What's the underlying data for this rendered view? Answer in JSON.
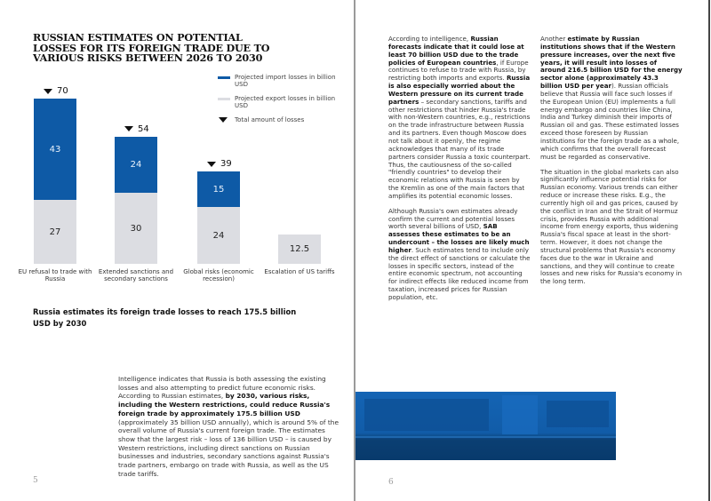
{
  "left_page": {
    "chart_title": "Russian estimates on potential losses for its foreign trade due to various risks between 2026 to 2030",
    "subheading": "Russia estimates its foreign trade losses to reach 175.5 billion USD by 2030",
    "paragraph": [
      {
        "t": "Intelligence indicates that Russia is both assessing the existing losses and also attempting to predict future economic risks. According to Russian estimates, ",
        "b": false
      },
      {
        "t": "by 2030, various risks, including the Western restrictions, could reduce Russia's foreign trade by approximately 175.5 billion USD",
        "b": true
      },
      {
        "t": " (approximately 35 billion USD annually), which is around 5% of the overall volume of Russia's current foreign trade. The estimates show that the largest risk – loss of 136 billion USD – is caused by Western restrictions, including direct sanctions on Russian businesses and industries, secondary sanctions against Russia's trade partners, embargo on trade with Russia, as well as the US trade tariffs.",
        "b": false
      }
    ],
    "page_number": "5"
  },
  "chart_data": {
    "type": "bar",
    "stacked": true,
    "title": "Russian estimates on potential losses for its foreign trade due to various risks between 2026 to 2030",
    "categories": [
      "EU refusal to trade with Russia",
      "Extended sanctions and secondary sanctions",
      "Global risks (economic recession)",
      "Escalation of US tariffs"
    ],
    "series": [
      {
        "name": "Projected export losses in billion USD",
        "values": [
          27,
          30,
          24,
          12.5
        ],
        "color": "#dcdde2"
      },
      {
        "name": "Projected import losses in billion USD",
        "values": [
          43,
          24,
          15,
          null
        ],
        "color": "#0e5aa6"
      }
    ],
    "totals": {
      "name": "Total amount of losses",
      "values": [
        70,
        54,
        39,
        null
      ]
    },
    "legend_order": [
      "Projected import losses in billion USD",
      "Projected export losses in billion USD",
      "Total amount of losses"
    ],
    "ylim": [
      0,
      70
    ],
    "grid": false,
    "legend_position": "top-right"
  },
  "right_page": {
    "col1": [
      [
        {
          "t": "According to intelligence, ",
          "b": false
        },
        {
          "t": "Russian forecasts indicate that it could lose at least 70 billion USD due to the trade policies of European countries",
          "b": true
        },
        {
          "t": ", if Europe continues to refuse to trade with Russia, by restricting both imports and exports. ",
          "b": false
        },
        {
          "t": "Russia is also especially worried about the Western pressure on its current trade partners",
          "b": true
        },
        {
          "t": " – secondary sanctions, tariffs and other restrictions that hinder Russia's trade with non-Western countries, e.g., restrictions on the trade infrastructure between Russia and its partners. Even though Moscow does not talk about it openly, the regime acknowledges that many of its trade partners consider Russia a toxic counterpart. Thus, the cautiousness of the so-called \"friendly countries\" to develop their economic relations with Russia is seen by the Kremlin as one of the main factors that amplifies its potential economic losses.",
          "b": false
        }
      ],
      [
        {
          "t": "Although Russia's own estimates already confirm the current and potential losses worth several billions of USD, ",
          "b": false
        },
        {
          "t": "SAB assesses these estimates to be an undercount – the losses are likely much higher",
          "b": true
        },
        {
          "t": ". Such estimates tend to include only the direct effect of sanctions or calculate the losses in specific sectors, instead of the entire economic spectrum, not accounting for indirect effects like reduced income from taxation, increased prices for Russian population, etc.",
          "b": false
        }
      ]
    ],
    "col2": [
      [
        {
          "t": "Another ",
          "b": false
        },
        {
          "t": "estimate by Russian institutions shows that if the Western pressure increases, over the next five years, it will result into losses of around 216.5 billion USD for the energy sector alone (approximately 43.3 billion USD per year",
          "b": true
        },
        {
          "t": "). Russian officials believe that Russia will face such losses if the European Union (EU) implements a full energy embargo and countries like China, India and Turkey diminish their imports of Russian oil and gas. These estimated losses exceed those foreseen by Russian institutions for the foreign trade as a whole, which confirms that the overall forecast must be regarded as conservative.",
          "b": false
        }
      ],
      [
        {
          "t": "The situation in the global markets can also significantly influence potential risks for Russian economy. Various trends can either reduce or increase these risks. E.g., the currently high oil and gas prices, caused by the conflict in Iran and the Strait of Hormuz crisis, provides Russia with additional income from energy exports, thus widening Russia's fiscal space at least in the short-term. However, it does not change the structural problems that Russia's economy faces due to the war in Ukraine and sanctions, and they will continue to create losses and new risks for Russia's economy in the long term.",
          "b": false
        }
      ]
    ],
    "page_number": "6"
  }
}
